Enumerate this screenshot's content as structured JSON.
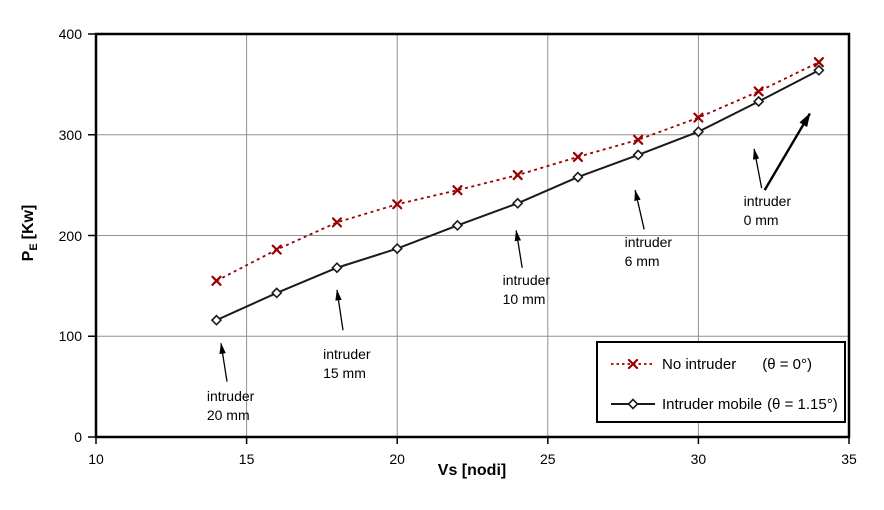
{
  "chart_data": {
    "type": "line",
    "title": "",
    "xlabel": "Vs [nodi]",
    "ylabel": {
      "base": "P",
      "sub": "E",
      "unit": "[Kw]"
    },
    "xlim": [
      10,
      35
    ],
    "ylim": [
      0,
      400
    ],
    "xticks": [
      10,
      15,
      20,
      25,
      30,
      35
    ],
    "yticks": [
      0,
      100,
      200,
      300,
      400
    ],
    "x_gridlines": [
      15,
      20,
      25,
      30
    ],
    "y_gridlines": [
      100,
      200,
      300
    ],
    "grid": true,
    "legend_position": "bottom-right",
    "x": [
      14,
      16,
      18,
      20,
      22,
      24,
      26,
      28,
      30,
      32,
      34
    ],
    "series": [
      {
        "name": "No intruder",
        "theta": "(θ = 0°)",
        "color": "#990000",
        "line_style": "dotted",
        "marker": "x",
        "values": [
          155,
          186,
          213,
          231,
          245,
          260,
          278,
          295,
          317,
          343,
          372
        ]
      },
      {
        "name": "Intruder mobile",
        "theta": "(θ = 1.15°)",
        "color": "#1a1a1a",
        "line_style": "solid",
        "marker": "diamond",
        "values": [
          116,
          143,
          168,
          187,
          210,
          232,
          258,
          280,
          303,
          333,
          364
        ]
      }
    ],
    "annotations": [
      {
        "lines": [
          "intruder",
          "20 mm"
        ],
        "text_x": 13.68,
        "text_y": 50,
        "arrows": [
          {
            "x1": 14.35,
            "y1": 55,
            "x2": 14.15,
            "y2": 93,
            "thick": false
          }
        ]
      },
      {
        "lines": [
          "intruder",
          "15 mm"
        ],
        "text_x": 17.54,
        "text_y": 91,
        "arrows": [
          {
            "x1": 18.2,
            "y1": 106,
            "x2": 18.0,
            "y2": 146,
            "thick": false
          }
        ]
      },
      {
        "lines": [
          "intruder",
          "10 mm"
        ],
        "text_x": 23.5,
        "text_y": 165,
        "arrows": [
          {
            "x1": 24.15,
            "y1": 168,
            "x2": 23.95,
            "y2": 205,
            "thick": false
          }
        ]
      },
      {
        "lines": [
          "intruder",
          "6 mm"
        ],
        "text_x": 27.55,
        "text_y": 202,
        "arrows": [
          {
            "x1": 28.2,
            "y1": 206,
            "x2": 27.9,
            "y2": 245,
            "thick": false
          }
        ]
      },
      {
        "lines": [
          "intruder",
          "0 mm"
        ],
        "text_x": 31.5,
        "text_y": 243,
        "arrows": [
          {
            "x1": 32.1,
            "y1": 247,
            "x2": 31.85,
            "y2": 286,
            "thick": false
          },
          {
            "x1": 32.2,
            "y1": 245,
            "x2": 33.7,
            "y2": 321,
            "thick": true
          }
        ]
      }
    ]
  }
}
